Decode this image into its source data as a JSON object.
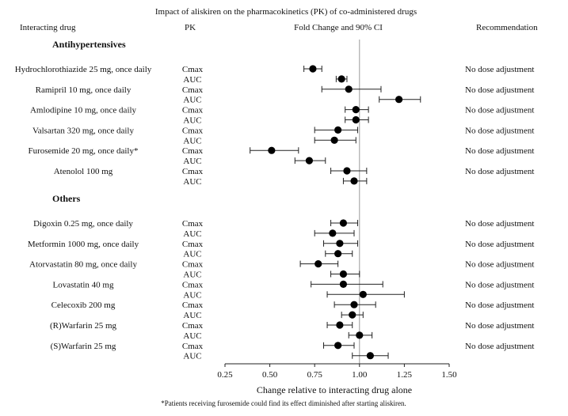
{
  "chart_data": {
    "type": "forest",
    "title": "Impact of aliskiren on the pharmacokinetics (PK) of co-administered drugs",
    "headers": {
      "drug": "Interacting drug",
      "pk": "PK",
      "fold": "Fold Change and 90% CI",
      "rec": "Recommendation"
    },
    "xlabel": "Change relative to interacting drug alone",
    "xlim": [
      0.25,
      1.5
    ],
    "xticks": [
      "0.25",
      "0.50",
      "0.75",
      "1.00",
      "1.25",
      "1.50"
    ],
    "reference_line": 1.0,
    "footnote": "*Patients receiving furosemide could find its effect diminished after starting aliskiren.",
    "groups": [
      {
        "name": "Antihypertensives",
        "drugs": [
          {
            "label": "Hydrochlorothiazide 25 mg, once daily",
            "recommendation": "No dose adjustment",
            "rows": [
              {
                "pk": "Cmax",
                "est": 0.74,
                "lo": 0.69,
                "hi": 0.79
              },
              {
                "pk": "AUC",
                "est": 0.9,
                "lo": 0.87,
                "hi": 0.93
              }
            ]
          },
          {
            "label": "Ramipril 10 mg, once daily",
            "recommendation": "No dose adjustment",
            "rows": [
              {
                "pk": "Cmax",
                "est": 0.94,
                "lo": 0.79,
                "hi": 1.12
              },
              {
                "pk": "AUC",
                "est": 1.22,
                "lo": 1.11,
                "hi": 1.34
              }
            ]
          },
          {
            "label": "Amlodipine 10 mg, once daily",
            "recommendation": "No dose adjustment",
            "rows": [
              {
                "pk": "Cmax",
                "est": 0.98,
                "lo": 0.92,
                "hi": 1.05
              },
              {
                "pk": "AUC",
                "est": 0.98,
                "lo": 0.92,
                "hi": 1.05
              }
            ]
          },
          {
            "label": "Valsartan 320 mg, once daily",
            "recommendation": "No dose adjustment",
            "rows": [
              {
                "pk": "Cmax",
                "est": 0.88,
                "lo": 0.75,
                "hi": 0.99
              },
              {
                "pk": "AUC",
                "est": 0.86,
                "lo": 0.75,
                "hi": 0.98
              }
            ]
          },
          {
            "label": "Furosemide 20 mg, once daily*",
            "recommendation": "No dose adjustment",
            "rows": [
              {
                "pk": "Cmax",
                "est": 0.51,
                "lo": 0.39,
                "hi": 0.66
              },
              {
                "pk": "AUC",
                "est": 0.72,
                "lo": 0.64,
                "hi": 0.81
              }
            ]
          },
          {
            "label": "Atenolol 100 mg",
            "recommendation": "No dose adjustment",
            "rows": [
              {
                "pk": "Cmax",
                "est": 0.93,
                "lo": 0.84,
                "hi": 1.04
              },
              {
                "pk": "AUC",
                "est": 0.97,
                "lo": 0.91,
                "hi": 1.04
              }
            ]
          }
        ]
      },
      {
        "name": "Others",
        "drugs": [
          {
            "label": "Digoxin 0.25 mg, once daily",
            "recommendation": "No dose adjustment",
            "rows": [
              {
                "pk": "Cmax",
                "est": 0.91,
                "lo": 0.84,
                "hi": 0.99
              },
              {
                "pk": "AUC",
                "est": 0.85,
                "lo": 0.75,
                "hi": 0.97
              }
            ]
          },
          {
            "label": "Metformin 1000 mg, once daily",
            "recommendation": "No dose adjustment",
            "rows": [
              {
                "pk": "Cmax",
                "est": 0.89,
                "lo": 0.8,
                "hi": 0.99
              },
              {
                "pk": "AUC",
                "est": 0.88,
                "lo": 0.81,
                "hi": 0.96
              }
            ]
          },
          {
            "label": "Atorvastatin 80 mg, once daily",
            "recommendation": "No dose adjustment",
            "rows": [
              {
                "pk": "Cmax",
                "est": 0.77,
                "lo": 0.67,
                "hi": 0.88
              },
              {
                "pk": "AUC",
                "est": 0.91,
                "lo": 0.84,
                "hi": 1.0
              }
            ]
          },
          {
            "label": "Lovastatin 40 mg",
            "recommendation": "No dose adjustment",
            "rows": [
              {
                "pk": "Cmax",
                "est": 0.91,
                "lo": 0.73,
                "hi": 1.13
              },
              {
                "pk": "AUC",
                "est": 1.02,
                "lo": 0.82,
                "hi": 1.25
              }
            ]
          },
          {
            "label": "Celecoxib 200 mg",
            "recommendation": "No dose adjustment",
            "rows": [
              {
                "pk": "Cmax",
                "est": 0.97,
                "lo": 0.86,
                "hi": 1.09
              },
              {
                "pk": "AUC",
                "est": 0.96,
                "lo": 0.9,
                "hi": 1.02
              }
            ]
          },
          {
            "label": "(R)Warfarin 25 mg",
            "recommendation": "No dose adjustment",
            "rows": [
              {
                "pk": "Cmax",
                "est": 0.89,
                "lo": 0.82,
                "hi": 0.96
              },
              {
                "pk": "AUC",
                "est": 1.0,
                "lo": 0.94,
                "hi": 1.07
              }
            ]
          },
          {
            "label": "(S)Warfarin 25 mg",
            "recommendation": "No dose adjustment",
            "rows": [
              {
                "pk": "Cmax",
                "est": 0.88,
                "lo": 0.8,
                "hi": 0.97
              },
              {
                "pk": "AUC",
                "est": 1.06,
                "lo": 0.96,
                "hi": 1.16
              }
            ]
          }
        ]
      }
    ]
  }
}
